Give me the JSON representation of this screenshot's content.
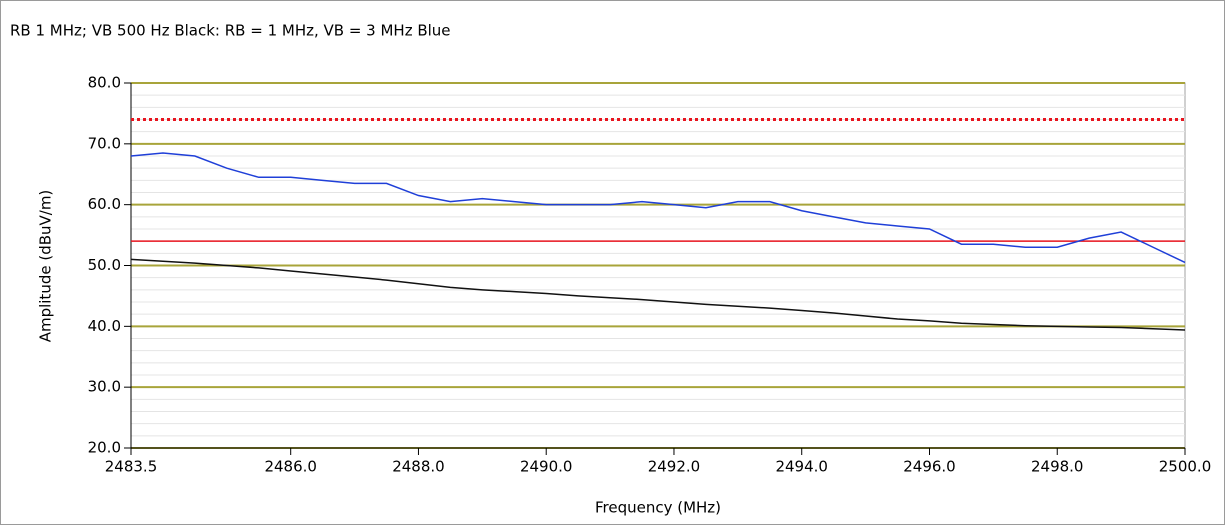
{
  "chart_data": {
    "type": "line",
    "title": "RB 1 MHz; VB 500 Hz Black: RB = 1 MHz, VB = 3 MHz Blue",
    "x_label": "Frequency (MHz)",
    "y_label": "Amplitude (dBuV/m)",
    "x": [
      2483.5,
      2484,
      2484.5,
      2485,
      2485.5,
      2486,
      2486.5,
      2487,
      2487.5,
      2488,
      2488.5,
      2489,
      2489.5,
      2490,
      2490.5,
      2491,
      2491.5,
      2492,
      2492.5,
      2493,
      2493.5,
      2494,
      2494.5,
      2495,
      2495.5,
      2496,
      2496.5,
      2497,
      2497.5,
      2498,
      2498.5,
      2499,
      2499.5,
      2500
    ],
    "series": [
      {
        "name": "Blue",
        "color": "#1f3fd8",
        "values": [
          68,
          68.5,
          68,
          66,
          64.5,
          64.5,
          64,
          63.5,
          63.5,
          61.5,
          60.5,
          61,
          60.5,
          60,
          60,
          60,
          60.5,
          60,
          59.5,
          60.5,
          60.5,
          59,
          58,
          57,
          56.5,
          56,
          53.5,
          53.5,
          53,
          53,
          54.5,
          55.5,
          53,
          50.5
        ]
      },
      {
        "name": "Black",
        "color": "#111111",
        "values": [
          51,
          50.7,
          50.4,
          50,
          49.6,
          49.1,
          48.6,
          48.1,
          47.6,
          47,
          46.4,
          46,
          45.7,
          45.4,
          45,
          44.7,
          44.4,
          44,
          43.6,
          43.3,
          43,
          42.6,
          42.2,
          41.7,
          41.2,
          40.9,
          40.5,
          40.3,
          40.1,
          40,
          39.9,
          39.8,
          39.6,
          39.4
        ]
      }
    ],
    "limit_lines": [
      {
        "value": 74,
        "color": "#e8141e",
        "style": "dotted"
      },
      {
        "value": 54,
        "color": "#e8141e",
        "style": "solid"
      }
    ],
    "xlim": [
      2483.5,
      2500
    ],
    "xticks": [
      {
        "value": 2483.5,
        "label": "2483.5"
      },
      {
        "value": 2486,
        "label": "2486.0"
      },
      {
        "value": 2488,
        "label": "2488.0"
      },
      {
        "value": 2490,
        "label": "2490.0"
      },
      {
        "value": 2492,
        "label": "2492.0"
      },
      {
        "value": 2494,
        "label": "2494.0"
      },
      {
        "value": 2496,
        "label": "2496.0"
      },
      {
        "value": 2498,
        "label": "2498.0"
      },
      {
        "value": 2500,
        "label": "2500.0"
      }
    ],
    "ylim": [
      20,
      80
    ],
    "yticks": [
      {
        "value": 20,
        "label": "20.0"
      },
      {
        "value": 30,
        "label": "30.0"
      },
      {
        "value": 40,
        "label": "40.0"
      },
      {
        "value": 50,
        "label": "50.0"
      },
      {
        "value": 60,
        "label": "60.0"
      },
      {
        "value": 70,
        "label": "70.0"
      },
      {
        "value": 80,
        "label": "80.0"
      }
    ],
    "yminorticks": [
      22,
      24,
      26,
      28,
      32,
      34,
      36,
      38,
      42,
      44,
      46,
      48,
      52,
      54,
      56,
      58,
      62,
      64,
      66,
      68,
      72,
      74,
      76,
      78
    ],
    "grid": true,
    "grid_color": "#a8a43a",
    "minor_grid_color": "#e4e4e4"
  }
}
